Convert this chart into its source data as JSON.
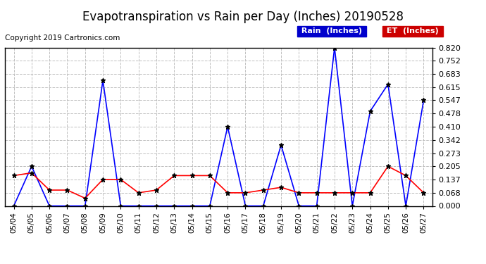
{
  "title": "Evapotranspiration vs Rain per Day (Inches) 20190528",
  "copyright": "Copyright 2019 Cartronics.com",
  "dates": [
    "05/04",
    "05/05",
    "05/06",
    "05/07",
    "05/08",
    "05/09",
    "05/10",
    "05/11",
    "05/12",
    "05/13",
    "05/14",
    "05/15",
    "05/16",
    "05/17",
    "05/18",
    "05/19",
    "05/20",
    "05/21",
    "05/22",
    "05/23",
    "05/24",
    "05/25",
    "05/26",
    "05/27"
  ],
  "rain": [
    0.0,
    0.205,
    0.0,
    0.0,
    0.0,
    0.65,
    0.0,
    0.0,
    0.0,
    0.0,
    0.0,
    0.0,
    0.41,
    0.0,
    0.0,
    0.315,
    0.0,
    0.0,
    0.82,
    0.0,
    0.49,
    0.63,
    0.0,
    0.547
  ],
  "et": [
    0.157,
    0.171,
    0.082,
    0.082,
    0.04,
    0.137,
    0.137,
    0.068,
    0.082,
    0.157,
    0.157,
    0.157,
    0.068,
    0.068,
    0.082,
    0.096,
    0.068,
    0.068,
    0.068,
    0.068,
    0.068,
    0.205,
    0.157,
    0.068
  ],
  "rain_color": "#0000FF",
  "et_color": "#FF0000",
  "background_color": "#FFFFFF",
  "grid_color": "#C0C0C0",
  "ylim": [
    0.0,
    0.82
  ],
  "yticks": [
    0.0,
    0.068,
    0.137,
    0.205,
    0.273,
    0.342,
    0.41,
    0.478,
    0.547,
    0.615,
    0.683,
    0.752,
    0.82
  ],
  "legend_rain_bg": "#0000CC",
  "legend_et_bg": "#CC0000",
  "title_fontsize": 12,
  "copyright_fontsize": 7.5,
  "tick_fontsize": 7.5,
  "ytick_fontsize": 8
}
